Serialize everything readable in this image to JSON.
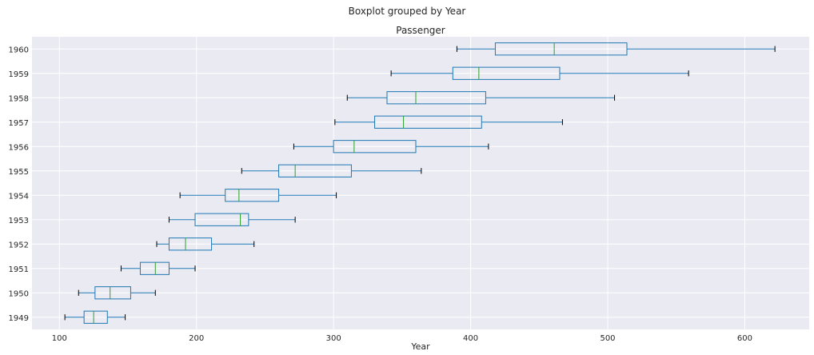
{
  "figure": {
    "suptitle": "Boxplot grouped by Year"
  },
  "chart_data": {
    "type": "boxplot",
    "orientation": "horizontal",
    "title": "Passenger",
    "xlabel": "Year",
    "ylabel": "",
    "xlim": [
      80,
      647
    ],
    "xticks": [
      100,
      200,
      300,
      400,
      500,
      600
    ],
    "grid": true,
    "colors": {
      "background": "#eaeaf2",
      "grid": "#ffffff",
      "box": "#1f77b4",
      "median": "#2ca02c",
      "whisker_cap": "#000000"
    },
    "categories": [
      "1949",
      "1950",
      "1951",
      "1952",
      "1953",
      "1954",
      "1955",
      "1956",
      "1957",
      "1958",
      "1959",
      "1960"
    ],
    "boxes": [
      {
        "label": "1949",
        "whislo": 104,
        "q1": 118,
        "med": 125,
        "q3": 135,
        "whishi": 148
      },
      {
        "label": "1950",
        "whislo": 114,
        "q1": 126,
        "med": 137,
        "q3": 152,
        "whishi": 170
      },
      {
        "label": "1951",
        "whislo": 145,
        "q1": 159,
        "med": 170,
        "q3": 180,
        "whishi": 199
      },
      {
        "label": "1952",
        "whislo": 171,
        "q1": 180,
        "med": 192,
        "q3": 211,
        "whishi": 242
      },
      {
        "label": "1953",
        "whislo": 180,
        "q1": 199,
        "med": 232,
        "q3": 238,
        "whishi": 272
      },
      {
        "label": "1954",
        "whislo": 188,
        "q1": 221,
        "med": 231,
        "q3": 260,
        "whishi": 302
      },
      {
        "label": "1955",
        "whislo": 233,
        "q1": 260,
        "med": 272,
        "q3": 313,
        "whishi": 364
      },
      {
        "label": "1956",
        "whislo": 271,
        "q1": 300,
        "med": 315,
        "q3": 360,
        "whishi": 413
      },
      {
        "label": "1957",
        "whislo": 301,
        "q1": 330,
        "med": 351,
        "q3": 408,
        "whishi": 467
      },
      {
        "label": "1958",
        "whislo": 310,
        "q1": 339,
        "med": 360,
        "q3": 411,
        "whishi": 505
      },
      {
        "label": "1959",
        "whislo": 342,
        "q1": 387,
        "med": 406,
        "q3": 465,
        "whishi": 559
      },
      {
        "label": "1960",
        "whislo": 390,
        "q1": 418,
        "med": 461,
        "q3": 514,
        "whishi": 622
      }
    ]
  }
}
